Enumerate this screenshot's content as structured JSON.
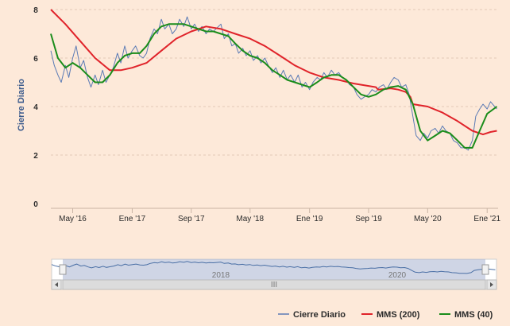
{
  "chart_data": {
    "type": "line",
    "ylabel": "Cierre Diario",
    "ylim": [
      0,
      8
    ],
    "yticks": [
      0,
      2,
      4,
      6,
      8
    ],
    "xlim": [
      "2016-02-01",
      "2021-02-15"
    ],
    "xticks": [
      {
        "date": "2016-05-01",
        "label": "May '16"
      },
      {
        "date": "2017-01-01",
        "label": "Ene '17"
      },
      {
        "date": "2017-09-01",
        "label": "Sep '17"
      },
      {
        "date": "2018-05-01",
        "label": "May '18"
      },
      {
        "date": "2019-01-01",
        "label": "Ene '19"
      },
      {
        "date": "2019-09-01",
        "label": "Sep '19"
      },
      {
        "date": "2020-05-01",
        "label": "May '20"
      },
      {
        "date": "2021-01-01",
        "label": "Ene '21"
      }
    ],
    "navigator": {
      "labels": [
        {
          "date": "2018-01-01",
          "label": "2018"
        },
        {
          "date": "2020-01-01",
          "label": "2020"
        }
      ],
      "handle_grip": "III"
    },
    "series": [
      {
        "name": "Cierre Diario",
        "color": "#5b7bb5",
        "points": [
          [
            "2016-02-01",
            6.3
          ],
          [
            "2016-02-15",
            5.7
          ],
          [
            "2016-03-01",
            5.3
          ],
          [
            "2016-03-15",
            5.0
          ],
          [
            "2016-04-01",
            5.7
          ],
          [
            "2016-04-15",
            5.2
          ],
          [
            "2016-05-01",
            6.0
          ],
          [
            "2016-05-15",
            6.5
          ],
          [
            "2016-06-01",
            5.6
          ],
          [
            "2016-06-15",
            5.9
          ],
          [
            "2016-07-01",
            5.2
          ],
          [
            "2016-07-15",
            4.8
          ],
          [
            "2016-08-01",
            5.3
          ],
          [
            "2016-08-15",
            4.9
          ],
          [
            "2016-09-01",
            5.5
          ],
          [
            "2016-09-15",
            5.0
          ],
          [
            "2016-10-01",
            5.3
          ],
          [
            "2016-10-15",
            5.6
          ],
          [
            "2016-11-01",
            6.2
          ],
          [
            "2016-11-15",
            5.8
          ],
          [
            "2016-12-01",
            6.5
          ],
          [
            "2016-12-15",
            6.0
          ],
          [
            "2017-01-01",
            6.3
          ],
          [
            "2017-01-15",
            6.5
          ],
          [
            "2017-02-01",
            6.1
          ],
          [
            "2017-02-15",
            6.0
          ],
          [
            "2017-03-01",
            6.2
          ],
          [
            "2017-03-15",
            6.8
          ],
          [
            "2017-04-01",
            7.2
          ],
          [
            "2017-04-15",
            7.0
          ],
          [
            "2017-05-01",
            7.6
          ],
          [
            "2017-05-15",
            7.2
          ],
          [
            "2017-06-01",
            7.4
          ],
          [
            "2017-06-15",
            7.0
          ],
          [
            "2017-07-01",
            7.2
          ],
          [
            "2017-07-15",
            7.6
          ],
          [
            "2017-08-01",
            7.3
          ],
          [
            "2017-08-15",
            7.7
          ],
          [
            "2017-09-01",
            7.2
          ],
          [
            "2017-09-15",
            7.4
          ],
          [
            "2017-10-01",
            7.1
          ],
          [
            "2017-10-15",
            7.3
          ],
          [
            "2017-11-01",
            7.0
          ],
          [
            "2017-11-15",
            7.2
          ],
          [
            "2017-12-01",
            7.1
          ],
          [
            "2018-01-01",
            7.4
          ],
          [
            "2018-01-15",
            6.8
          ],
          [
            "2018-02-01",
            7.0
          ],
          [
            "2018-02-15",
            6.5
          ],
          [
            "2018-03-01",
            6.6
          ],
          [
            "2018-03-15",
            6.2
          ],
          [
            "2018-04-01",
            6.4
          ],
          [
            "2018-04-15",
            6.1
          ],
          [
            "2018-05-01",
            6.3
          ],
          [
            "2018-05-15",
            5.9
          ],
          [
            "2018-06-01",
            6.1
          ],
          [
            "2018-06-15",
            5.8
          ],
          [
            "2018-07-01",
            6.0
          ],
          [
            "2018-07-15",
            5.7
          ],
          [
            "2018-08-01",
            5.4
          ],
          [
            "2018-08-15",
            5.6
          ],
          [
            "2018-09-01",
            5.2
          ],
          [
            "2018-09-15",
            5.5
          ],
          [
            "2018-10-01",
            5.1
          ],
          [
            "2018-10-15",
            5.3
          ],
          [
            "2018-11-01",
            5.0
          ],
          [
            "2018-11-15",
            5.3
          ],
          [
            "2018-12-01",
            4.8
          ],
          [
            "2018-12-15",
            5.0
          ],
          [
            "2019-01-01",
            4.7
          ],
          [
            "2019-01-15",
            5.0
          ],
          [
            "2019-02-01",
            5.2
          ],
          [
            "2019-02-15",
            5.1
          ],
          [
            "2019-03-01",
            5.4
          ],
          [
            "2019-03-15",
            5.2
          ],
          [
            "2019-04-01",
            5.5
          ],
          [
            "2019-04-15",
            5.3
          ],
          [
            "2019-05-01",
            5.4
          ],
          [
            "2019-05-15",
            5.2
          ],
          [
            "2019-06-01",
            5.1
          ],
          [
            "2019-06-15",
            4.9
          ],
          [
            "2019-07-01",
            4.8
          ],
          [
            "2019-07-15",
            4.5
          ],
          [
            "2019-08-01",
            4.3
          ],
          [
            "2019-08-15",
            4.4
          ],
          [
            "2019-09-01",
            4.5
          ],
          [
            "2019-09-15",
            4.7
          ],
          [
            "2019-10-01",
            4.6
          ],
          [
            "2019-10-15",
            4.8
          ],
          [
            "2019-11-01",
            4.9
          ],
          [
            "2019-11-15",
            4.7
          ],
          [
            "2019-12-01",
            5.0
          ],
          [
            "2019-12-15",
            5.2
          ],
          [
            "2020-01-01",
            5.1
          ],
          [
            "2020-01-15",
            4.8
          ],
          [
            "2020-02-01",
            4.9
          ],
          [
            "2020-02-15",
            4.5
          ],
          [
            "2020-03-01",
            3.6
          ],
          [
            "2020-03-15",
            2.8
          ],
          [
            "2020-04-01",
            2.6
          ],
          [
            "2020-04-15",
            2.9
          ],
          [
            "2020-05-01",
            2.7
          ],
          [
            "2020-05-15",
            3.0
          ],
          [
            "2020-06-01",
            3.1
          ],
          [
            "2020-06-15",
            2.9
          ],
          [
            "2020-07-01",
            3.2
          ],
          [
            "2020-07-15",
            3.0
          ],
          [
            "2020-08-01",
            2.9
          ],
          [
            "2020-08-15",
            2.6
          ],
          [
            "2020-09-01",
            2.5
          ],
          [
            "2020-09-15",
            2.3
          ],
          [
            "2020-10-01",
            2.3
          ],
          [
            "2020-10-15",
            2.2
          ],
          [
            "2020-11-01",
            2.6
          ],
          [
            "2020-11-15",
            3.6
          ],
          [
            "2020-12-01",
            3.9
          ],
          [
            "2020-12-15",
            4.1
          ],
          [
            "2021-01-01",
            3.9
          ],
          [
            "2021-01-15",
            4.2
          ],
          [
            "2021-02-01",
            4.0
          ],
          [
            "2021-02-10",
            3.9
          ]
        ]
      },
      {
        "name": "MMS (200)",
        "color": "#e0232a",
        "points": [
          [
            "2016-02-01",
            8.0
          ],
          [
            "2016-04-01",
            7.4
          ],
          [
            "2016-06-01",
            6.7
          ],
          [
            "2016-08-01",
            6.0
          ],
          [
            "2016-10-01",
            5.5
          ],
          [
            "2016-11-15",
            5.5
          ],
          [
            "2017-01-01",
            5.6
          ],
          [
            "2017-03-01",
            5.8
          ],
          [
            "2017-05-01",
            6.3
          ],
          [
            "2017-07-01",
            6.8
          ],
          [
            "2017-09-01",
            7.1
          ],
          [
            "2017-11-01",
            7.3
          ],
          [
            "2018-01-01",
            7.2
          ],
          [
            "2018-03-01",
            7.0
          ],
          [
            "2018-05-01",
            6.8
          ],
          [
            "2018-07-01",
            6.5
          ],
          [
            "2018-09-01",
            6.1
          ],
          [
            "2018-11-01",
            5.7
          ],
          [
            "2019-01-01",
            5.4
          ],
          [
            "2019-03-01",
            5.2
          ],
          [
            "2019-05-01",
            5.1
          ],
          [
            "2019-07-01",
            4.95
          ],
          [
            "2019-09-01",
            4.85
          ],
          [
            "2019-10-01",
            4.8
          ],
          [
            "2019-10-10",
            4.7
          ],
          [
            "2019-12-01",
            4.75
          ],
          [
            "2020-01-01",
            4.7
          ],
          [
            "2020-02-01",
            4.6
          ],
          [
            "2020-02-20",
            4.4
          ],
          [
            "2020-03-01",
            4.1
          ],
          [
            "2020-05-01",
            4.0
          ],
          [
            "2020-07-01",
            3.75
          ],
          [
            "2020-09-01",
            3.4
          ],
          [
            "2020-11-01",
            3.0
          ],
          [
            "2020-12-15",
            2.85
          ],
          [
            "2021-01-15",
            2.95
          ],
          [
            "2021-02-10",
            3.0
          ]
        ]
      },
      {
        "name": "MMS (40)",
        "color": "#1a8c1a",
        "points": [
          [
            "2016-02-01",
            7.0
          ],
          [
            "2016-03-01",
            6.0
          ],
          [
            "2016-04-01",
            5.6
          ],
          [
            "2016-05-01",
            5.8
          ],
          [
            "2016-06-01",
            5.6
          ],
          [
            "2016-07-01",
            5.3
          ],
          [
            "2016-08-01",
            5.0
          ],
          [
            "2016-09-01",
            5.0
          ],
          [
            "2016-10-01",
            5.3
          ],
          [
            "2016-11-01",
            5.8
          ],
          [
            "2016-12-01",
            6.1
          ],
          [
            "2017-01-01",
            6.2
          ],
          [
            "2017-02-01",
            6.2
          ],
          [
            "2017-03-01",
            6.5
          ],
          [
            "2017-04-01",
            7.0
          ],
          [
            "2017-05-01",
            7.3
          ],
          [
            "2017-06-01",
            7.4
          ],
          [
            "2017-07-01",
            7.4
          ],
          [
            "2017-08-01",
            7.4
          ],
          [
            "2017-09-01",
            7.3
          ],
          [
            "2017-10-01",
            7.2
          ],
          [
            "2017-11-01",
            7.1
          ],
          [
            "2017-12-01",
            7.1
          ],
          [
            "2018-01-01",
            7.0
          ],
          [
            "2018-02-01",
            6.9
          ],
          [
            "2018-03-01",
            6.6
          ],
          [
            "2018-04-01",
            6.3
          ],
          [
            "2018-05-01",
            6.1
          ],
          [
            "2018-06-01",
            6.0
          ],
          [
            "2018-07-01",
            5.8
          ],
          [
            "2018-08-01",
            5.5
          ],
          [
            "2018-09-01",
            5.3
          ],
          [
            "2018-10-01",
            5.1
          ],
          [
            "2018-11-01",
            5.0
          ],
          [
            "2018-12-01",
            4.9
          ],
          [
            "2019-01-01",
            4.8
          ],
          [
            "2019-02-01",
            5.0
          ],
          [
            "2019-03-01",
            5.2
          ],
          [
            "2019-04-01",
            5.3
          ],
          [
            "2019-05-01",
            5.3
          ],
          [
            "2019-06-01",
            5.1
          ],
          [
            "2019-07-01",
            4.8
          ],
          [
            "2019-08-01",
            4.5
          ],
          [
            "2019-09-01",
            4.4
          ],
          [
            "2019-10-01",
            4.5
          ],
          [
            "2019-11-01",
            4.7
          ],
          [
            "2019-12-01",
            4.8
          ],
          [
            "2020-01-01",
            4.85
          ],
          [
            "2020-02-01",
            4.7
          ],
          [
            "2020-03-01",
            4.1
          ],
          [
            "2020-04-01",
            3.0
          ],
          [
            "2020-05-01",
            2.6
          ],
          [
            "2020-06-01",
            2.8
          ],
          [
            "2020-07-01",
            3.0
          ],
          [
            "2020-08-01",
            2.9
          ],
          [
            "2020-09-01",
            2.6
          ],
          [
            "2020-10-01",
            2.3
          ],
          [
            "2020-11-01",
            2.3
          ],
          [
            "2020-12-01",
            3.0
          ],
          [
            "2021-01-01",
            3.7
          ],
          [
            "2021-02-10",
            4.0
          ]
        ]
      }
    ]
  }
}
